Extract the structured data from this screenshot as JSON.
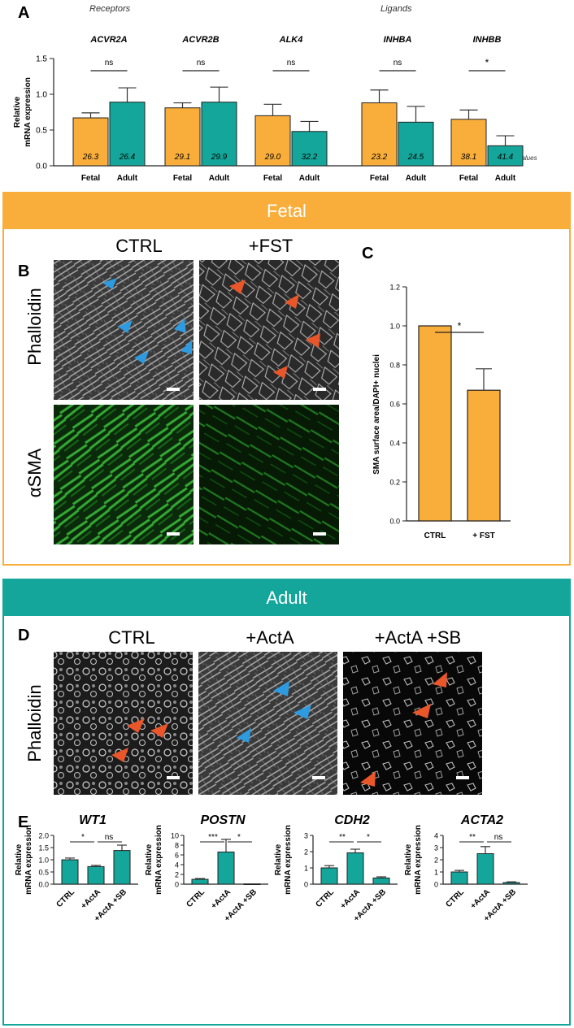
{
  "panel_a": {
    "letter": "A",
    "group_labels": {
      "receptors": "Receptors",
      "ligands": "Ligands"
    },
    "raw_ct_label": "Raw Ct values",
    "chart_data": {
      "type": "bar",
      "ylabel": "Relative mRNA expression",
      "ylim": [
        0,
        1.5
      ],
      "yticks": [
        "0.0",
        "0.5",
        "1.0",
        "1.5"
      ],
      "category_labels": [
        "Fetal",
        "Adult"
      ],
      "colors": {
        "fetal": "#F9AE3B",
        "adult": "#14A69A"
      },
      "genes": [
        {
          "name": "ACVR2A",
          "fetal": 0.67,
          "fetal_err": 0.07,
          "adult": 0.89,
          "adult_err": 0.2,
          "fetal_ct": "26.3",
          "adult_ct": "26.4",
          "sig": "ns"
        },
        {
          "name": "ACVR2B",
          "fetal": 0.81,
          "fetal_err": 0.07,
          "adult": 0.89,
          "adult_err": 0.21,
          "fetal_ct": "29.1",
          "adult_ct": "29.9",
          "sig": "ns"
        },
        {
          "name": "ALK4",
          "fetal": 0.7,
          "fetal_err": 0.16,
          "adult": 0.48,
          "adult_err": 0.14,
          "fetal_ct": "29.0",
          "adult_ct": "32.2",
          "sig": "ns"
        },
        {
          "name": "INHBA",
          "fetal": 0.88,
          "fetal_err": 0.18,
          "adult": 0.61,
          "adult_err": 0.22,
          "fetal_ct": "23.2",
          "adult_ct": "24.5",
          "sig": "ns"
        },
        {
          "name": "INHBB",
          "fetal": 0.65,
          "fetal_err": 0.13,
          "adult": 0.28,
          "adult_err": 0.14,
          "fetal_ct": "38.1",
          "adult_ct": "41.4",
          "sig": "*"
        }
      ]
    }
  },
  "fetal_section": {
    "header": "Fetal",
    "color": "#F9AE3B",
    "panel_b": {
      "letter": "B",
      "col_labels": [
        "CTRL",
        "+FST"
      ],
      "row_labels": [
        "Phalloidin",
        "αSMA"
      ]
    },
    "panel_c": {
      "letter": "C",
      "chart_data": {
        "type": "bar",
        "categories": [
          "CTRL",
          "+ FST"
        ],
        "values": [
          1.0,
          0.67
        ],
        "errors": [
          0,
          0.11
        ],
        "ylabel": "SMA surface area/DAPI+ nuclei",
        "ylim": [
          0,
          1.2
        ],
        "yticks": [
          "0.0",
          "0.2",
          "0.4",
          "0.6",
          "0.8",
          "1.0",
          "1.2"
        ],
        "sig": "*",
        "color": "#F9AE3B"
      }
    }
  },
  "adult_section": {
    "header": "Adult",
    "color": "#14A69A",
    "panel_d": {
      "letter": "D",
      "col_labels": [
        "CTRL",
        "+ActA",
        "+ActA +SB"
      ],
      "row_label": "Phalloidin"
    },
    "panel_e": {
      "letter": "E",
      "chart_data": [
        {
          "type": "bar",
          "title": "WT1",
          "ylabel": "Relative mRNA expression",
          "categories": [
            "CTRL",
            "+ActA",
            "+ActA +SB"
          ],
          "values": [
            1.0,
            0.72,
            1.38
          ],
          "errors": [
            0.07,
            0.05,
            0.22
          ],
          "ylim": [
            0,
            2.0
          ],
          "yticks": [
            "0.0",
            "0.5",
            "1.0",
            "1.5",
            "2.0"
          ],
          "sig": [
            "*",
            "ns"
          ]
        },
        {
          "type": "bar",
          "title": "POSTN",
          "ylabel": "Relative mRNA expression",
          "categories": [
            "CTRL",
            "+ActA",
            "+ActA +SB"
          ],
          "values": [
            1.0,
            6.6,
            0.05
          ],
          "errors": [
            0.15,
            2.6,
            0
          ],
          "ylim": [
            0,
            10
          ],
          "yticks": [
            "0",
            "2",
            "4",
            "6",
            "8",
            "10"
          ],
          "sig": [
            "***",
            "*"
          ]
        },
        {
          "type": "bar",
          "title": "CDH2",
          "ylabel": "Relative mRNA expression",
          "categories": [
            "CTRL",
            "+ActA",
            "+ActA +SB"
          ],
          "values": [
            1.0,
            1.93,
            0.38
          ],
          "errors": [
            0.14,
            0.22,
            0.07
          ],
          "ylim": [
            0,
            3
          ],
          "yticks": [
            "0",
            "1",
            "2",
            "3"
          ],
          "sig": [
            "**",
            "*"
          ]
        },
        {
          "type": "bar",
          "title": "ACTA2",
          "ylabel": "Relative mRNA expression",
          "categories": [
            "CTRL",
            "+ActA",
            "+ActA +SB"
          ],
          "values": [
            1.0,
            2.5,
            0.13
          ],
          "errors": [
            0.13,
            0.58,
            0.06
          ],
          "ylim": [
            0,
            4
          ],
          "yticks": [
            "0",
            "1",
            "2",
            "3",
            "4"
          ],
          "sig": [
            "**",
            "ns"
          ]
        }
      ]
    }
  }
}
